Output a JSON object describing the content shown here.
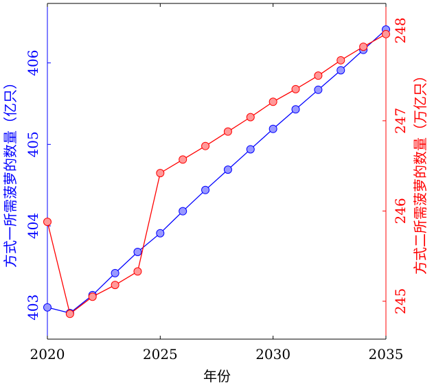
{
  "chart_data": {
    "type": "line",
    "xlabel": "年份",
    "ylabel_left": "方式一所需菠萝的数量（亿只）",
    "ylabel_right": "方式二所需菠萝的数量（万亿只）",
    "x": [
      2020,
      2021,
      2022,
      2023,
      2024,
      2025,
      2026,
      2027,
      2028,
      2029,
      2030,
      2031,
      2032,
      2033,
      2034,
      2035
    ],
    "xlim": [
      2020,
      2035
    ],
    "xticks": [
      2020,
      2025,
      2030,
      2035
    ],
    "series": [
      {
        "axis": "left",
        "color": "#0000ff",
        "marker_fill": "#9999ff",
        "values": [
          403.0,
          402.93,
          403.15,
          403.42,
          403.68,
          403.91,
          404.18,
          404.44,
          404.69,
          404.94,
          405.19,
          405.43,
          405.67,
          405.91,
          406.16,
          406.41
        ]
      },
      {
        "axis": "right",
        "color": "#ff0000",
        "marker_fill": "#ff9999",
        "values": [
          245.88,
          244.86,
          245.05,
          245.18,
          245.33,
          246.42,
          246.57,
          246.72,
          246.88,
          247.04,
          247.21,
          247.35,
          247.5,
          247.67,
          247.82,
          247.96
        ]
      }
    ],
    "ylim_left": [
      402.61,
      406.73
    ],
    "ylim_right": [
      244.58,
      248.3
    ],
    "yticks_left": [
      403,
      404,
      405,
      406
    ],
    "yticks_right": [
      245,
      246,
      247,
      248
    ],
    "grid": false,
    "legend": "none"
  }
}
